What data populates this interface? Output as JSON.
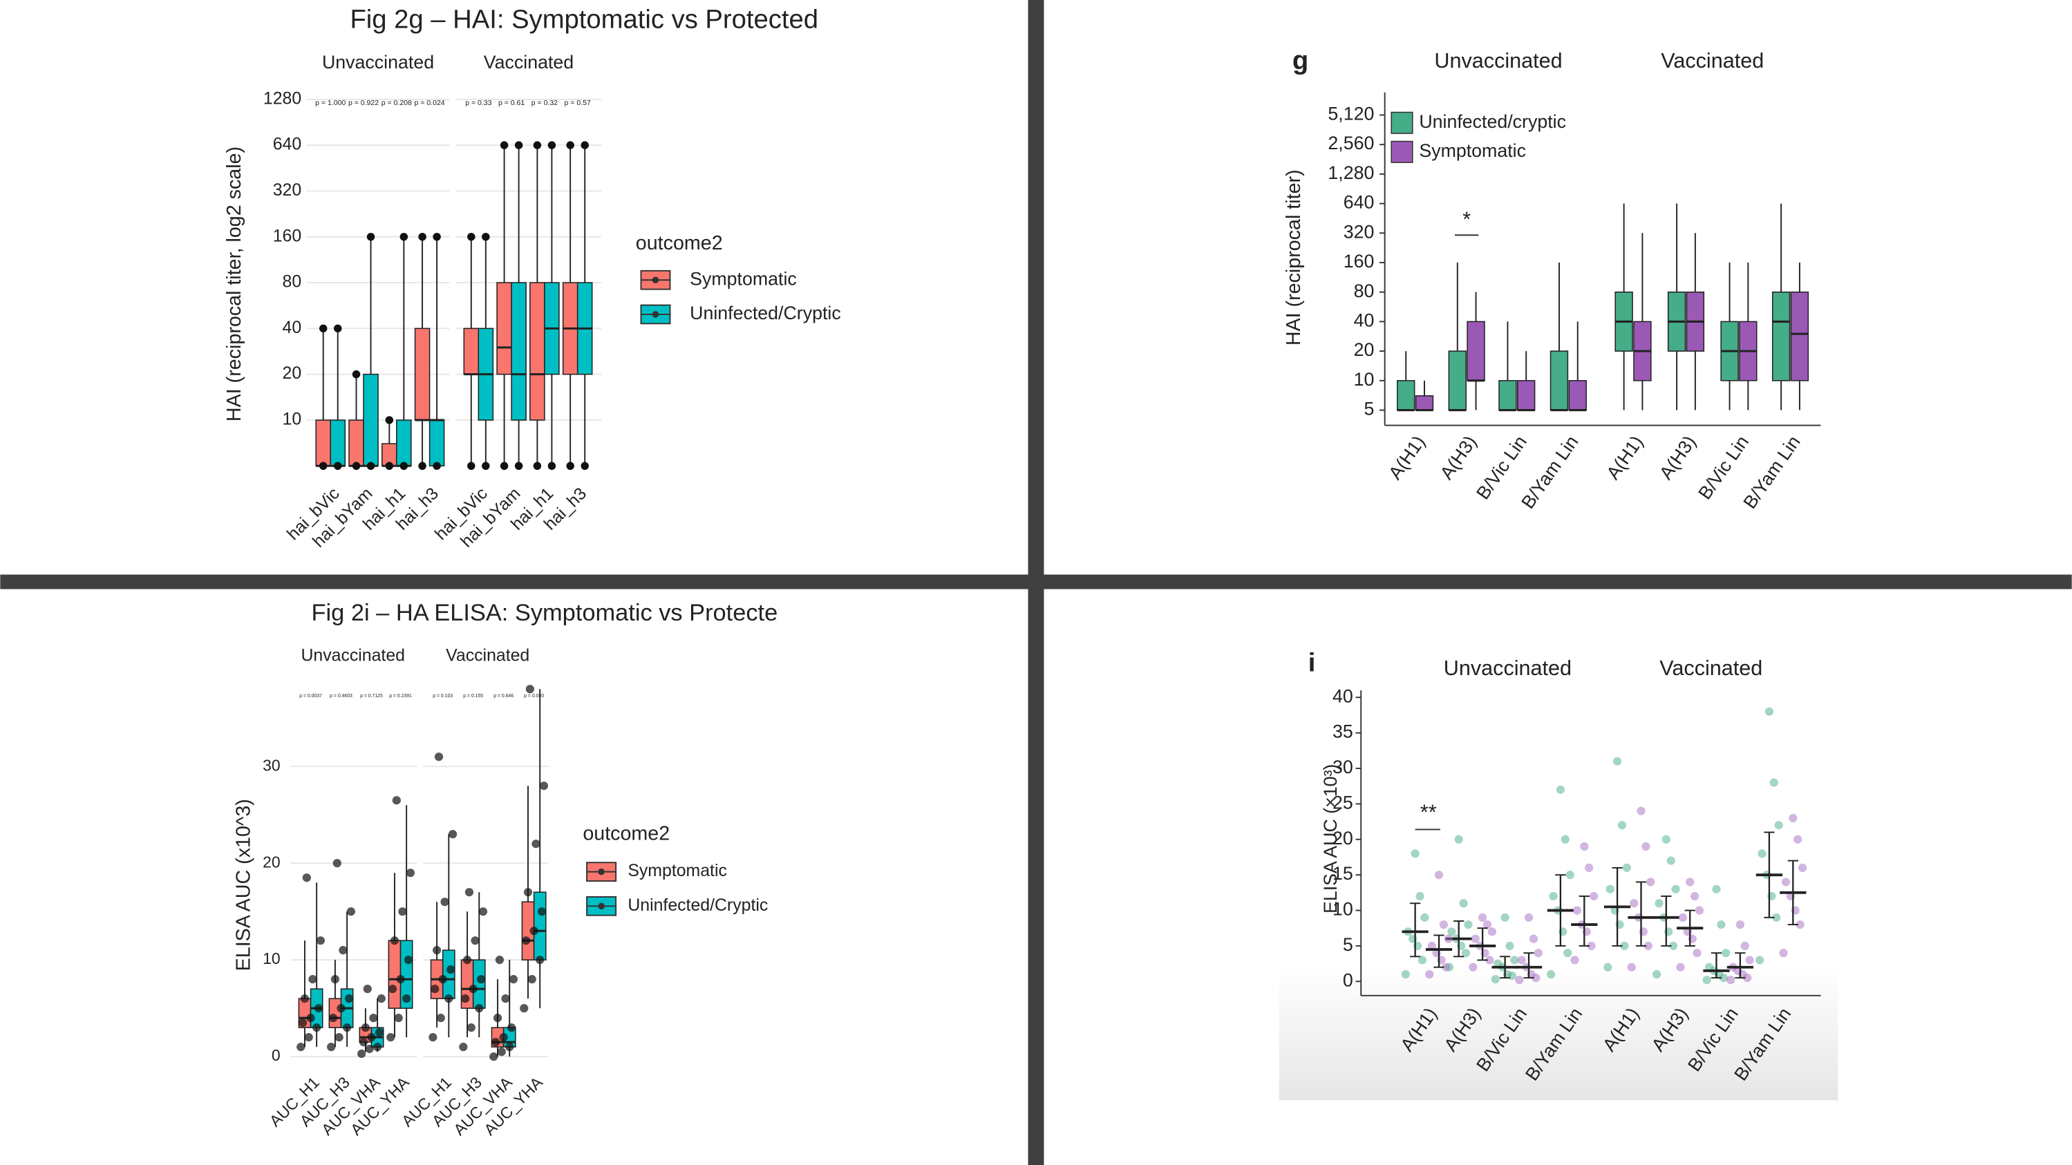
{
  "chart_data": [
    {
      "type": "box",
      "title": "Fig 2g – HAI: Symptomatic vs Protected",
      "facets": [
        "Unvaccinated",
        "Vaccinated"
      ],
      "categories": [
        "hai_bVic",
        "hai_bYam",
        "hai_h1",
        "hai_h3"
      ],
      "y_label": "HAI (reciprocal titer, log2 scale)",
      "y_scale": "log2",
      "ylim": [
        4.5,
        1450
      ],
      "yticks": [
        10,
        20,
        40,
        80,
        160,
        320,
        640,
        1280
      ],
      "grid": true,
      "legend_title": "outcome2",
      "p_labels": [
        [
          "p = 1.000",
          "p = 0.922",
          "p = 0.208",
          "p = 0.024"
        ],
        [
          "p = 0.33",
          "p = 0.61",
          "p = 0.32",
          "p = 0.57"
        ]
      ],
      "series": [
        {
          "name": "Symptomatic",
          "color": "#f8766d",
          "values": [
            [
              [
                5,
                5,
                5,
                10,
                40
              ],
              [
                5,
                5,
                5,
                10,
                20
              ],
              [
                5,
                5,
                5,
                7,
                10
              ],
              [
                5,
                10,
                10,
                40,
                160
              ]
            ],
            [
              [
                5,
                20,
                20,
                40,
                160
              ],
              [
                5,
                20,
                30,
                80,
                640
              ],
              [
                5,
                10,
                20,
                80,
                640
              ],
              [
                5,
                20,
                40,
                80,
                640
              ]
            ]
          ]
        },
        {
          "name": "Uninfected/Cryptic",
          "color": "#00bfc4",
          "values": [
            [
              [
                5,
                5,
                5,
                10,
                40
              ],
              [
                5,
                5,
                5,
                20,
                160
              ],
              [
                5,
                5,
                5,
                10,
                160
              ],
              [
                5,
                5,
                10,
                10,
                160
              ]
            ],
            [
              [
                5,
                10,
                20,
                40,
                160
              ],
              [
                5,
                10,
                20,
                80,
                640
              ],
              [
                5,
                20,
                40,
                80,
                640
              ],
              [
                5,
                20,
                40,
                80,
                640
              ]
            ]
          ]
        }
      ]
    },
    {
      "type": "box",
      "panel_label": "g",
      "facets": [
        "Unvaccinated",
        "Vaccinated"
      ],
      "categories": [
        "A(H1)",
        "A(H3)",
        "B/Vic Lin",
        "B/Yam Lin"
      ],
      "y_label": "HAI (reciprocal titer)",
      "y_scale": "log2",
      "ylim": [
        3.5,
        8700
      ],
      "yticks": [
        {
          "value": 5120,
          "label": "5,120"
        },
        {
          "value": 2560,
          "label": "2,560"
        },
        {
          "value": 1280,
          "label": "1,280"
        },
        640,
        320,
        160,
        80,
        40,
        20,
        10,
        5
      ],
      "grid": false,
      "legend_position": "top-left",
      "annotations": [
        "*"
      ],
      "series": [
        {
          "name": "Uninfected/cryptic",
          "color": "#45ad88",
          "values": [
            [
              [
                5,
                5,
                5,
                10,
                20
              ],
              [
                5,
                5,
                5,
                20,
                160
              ],
              [
                5,
                5,
                5,
                10,
                40
              ],
              [
                5,
                5,
                5,
                20,
                160
              ]
            ],
            [
              [
                5,
                20,
                40,
                80,
                640
              ],
              [
                5,
                20,
                40,
                80,
                640
              ],
              [
                5,
                10,
                20,
                40,
                160
              ],
              [
                5,
                10,
                40,
                80,
                640
              ]
            ]
          ]
        },
        {
          "name": "Symptomatic",
          "color": "#9b59b6",
          "values": [
            [
              [
                5,
                5,
                5,
                7,
                10
              ],
              [
                5,
                10,
                10,
                40,
                80
              ],
              [
                5,
                5,
                5,
                10,
                20
              ],
              [
                5,
                5,
                5,
                10,
                40
              ]
            ],
            [
              [
                5,
                10,
                20,
                40,
                320
              ],
              [
                5,
                20,
                40,
                80,
                320
              ],
              [
                5,
                10,
                20,
                40,
                160
              ],
              [
                5,
                10,
                30,
                80,
                160
              ]
            ]
          ]
        }
      ]
    },
    {
      "type": "box",
      "title": "Fig 2i – HA ELISA: Symptomatic vs Protecte",
      "facets": [
        "Unvaccinated",
        "Vaccinated"
      ],
      "categories": [
        "AUC_H1",
        "AUC_H3",
        "AUC_VHA",
        "AUC_YHA"
      ],
      "y_label": "ELISA AUC (x10^3)",
      "ylim": [
        -1.1,
        35.5
      ],
      "yticks": [
        0,
        10,
        20,
        30
      ],
      "grid": true,
      "legend_title": "outcome2",
      "p_labels": [
        [
          "p = 0.0037",
          "p = 0.4603",
          "p = 0.7125",
          "p = 0.2391"
        ],
        [
          "p = 0.103",
          "p = 0.155",
          "p = 0.646",
          "p = 0.050"
        ]
      ],
      "series": [
        {
          "name": "Symptomatic",
          "color": "#f8766d",
          "values": [
            [
              [
                1,
                3,
                4,
                6,
                12
              ],
              [
                1,
                3,
                4,
                6,
                10
              ],
              [
                0.5,
                1.5,
                2,
                3,
                5
              ],
              [
                2,
                5,
                8,
                12,
                19
              ]
            ],
            [
              [
                3,
                6,
                8,
                10,
                16
              ],
              [
                2,
                5,
                7,
                10,
                15
              ],
              [
                0,
                1,
                1.5,
                3,
                8
              ],
              [
                6,
                10,
                12,
                16,
                28
              ]
            ]
          ]
        },
        {
          "name": "Uninfected/Cryptic",
          "color": "#00bfc4",
          "values": [
            [
              [
                1,
                3,
                5,
                7,
                18
              ],
              [
                1,
                3,
                5,
                7,
                15
              ],
              [
                0.5,
                1,
                2,
                3,
                6
              ],
              [
                2,
                5,
                8,
                12,
                26
              ]
            ],
            [
              [
                2,
                6,
                8,
                11,
                23
              ],
              [
                2,
                5,
                7,
                10,
                17
              ],
              [
                0,
                1,
                1.5,
                3,
                10
              ],
              [
                5,
                10,
                13,
                17,
                38
              ]
            ]
          ]
        }
      ],
      "points": [
        [
          [
            1,
            2,
            3,
            3.5,
            4,
            5,
            6,
            8,
            12,
            18.5
          ],
          [
            1,
            2,
            3,
            4,
            5,
            6,
            8,
            11,
            15,
            20
          ],
          [
            0.3,
            0.8,
            1,
            1.5,
            2,
            2.5,
            3,
            4,
            6,
            7
          ],
          [
            2,
            4,
            6,
            7,
            8,
            10,
            12,
            15,
            19,
            26.5
          ]
        ],
        [
          [
            2,
            4,
            6,
            7,
            8,
            9,
            11,
            16,
            23,
            31
          ],
          [
            1,
            3,
            5,
            6,
            7,
            8,
            10,
            12,
            15,
            17
          ],
          [
            0,
            0.5,
            1,
            1.5,
            2,
            3,
            4,
            6,
            8,
            10
          ],
          [
            5,
            8,
            10,
            12,
            13,
            15,
            17,
            22,
            28,
            38
          ]
        ]
      ]
    },
    {
      "type": "strip",
      "panel_label": "i",
      "facets": [
        "Unvaccinated",
        "Vaccinated"
      ],
      "categories": [
        "A(H1)",
        "A(H3)",
        "B/Vic Lin",
        "B/Yam Lin"
      ],
      "y_label": "ELISA AUC (×10³)",
      "ylim": [
        -2,
        41
      ],
      "yticks": [
        0,
        5,
        10,
        15,
        20,
        25,
        30,
        35,
        40
      ],
      "grid": false,
      "annotations": [
        "**"
      ],
      "series": [
        {
          "name": "Uninfected/cryptic",
          "color": "#45ad88",
          "values": [
            [
              7,
              6,
              2,
              10
            ],
            [
              10.5,
              9,
              1.5,
              15
            ]
          ],
          "lower": [
            [
              3.5,
              3.5,
              0.5,
              5
            ],
            [
              5,
              5,
              0.5,
              9
            ]
          ],
          "upper": [
            [
              11,
              8.5,
              3.5,
              15
            ],
            [
              16,
              12,
              4,
              21
            ]
          ],
          "points": [
            [
              [
                1,
                3,
                5,
                6,
                7,
                9,
                12,
                18
              ],
              [
                2,
                4,
                5,
                6,
                7,
                8,
                11,
                20
              ],
              [
                0.3,
                0.8,
                1,
                2,
                2.5,
                3,
                5,
                9
              ],
              [
                1,
                4,
                7,
                10,
                12,
                15,
                20,
                27
              ]
            ],
            [
              [
                2,
                5,
                8,
                10,
                13,
                16,
                22,
                31
              ],
              [
                1,
                5,
                7,
                9,
                11,
                13,
                17,
                20
              ],
              [
                0.2,
                0.5,
                1,
                1.5,
                2,
                4,
                8,
                13
              ],
              [
                3,
                9,
                12,
                15,
                18,
                22,
                28,
                38
              ]
            ]
          ]
        },
        {
          "name": "Symptomatic",
          "color": "#a56cc1",
          "values": [
            [
              4.5,
              5,
              2,
              8
            ],
            [
              9,
              7.5,
              2,
              12.5
            ]
          ],
          "lower": [
            [
              2,
              3,
              0.5,
              5
            ],
            [
              5,
              5,
              0.5,
              8
            ]
          ],
          "upper": [
            [
              6.5,
              7.5,
              4,
              12
            ],
            [
              14,
              10,
              4,
              17
            ]
          ],
          "points": [
            [
              [
                1,
                2,
                3,
                4,
                5,
                6,
                8,
                15
              ],
              [
                2,
                3,
                4,
                5,
                6,
                7,
                8,
                9
              ],
              [
                0.2,
                0.5,
                1,
                2,
                3,
                4,
                6,
                9
              ],
              [
                3,
                5,
                7,
                8,
                10,
                12,
                16,
                19
              ]
            ],
            [
              [
                2,
                5,
                7,
                9,
                11,
                14,
                19,
                24
              ],
              [
                2,
                4,
                6,
                7,
                9,
                10,
                12,
                14
              ],
              [
                0.2,
                0.5,
                1,
                1.5,
                2,
                3,
                5,
                8
              ],
              [
                4,
                8,
                10,
                12,
                14,
                16,
                20,
                23
              ]
            ]
          ]
        }
      ]
    }
  ]
}
